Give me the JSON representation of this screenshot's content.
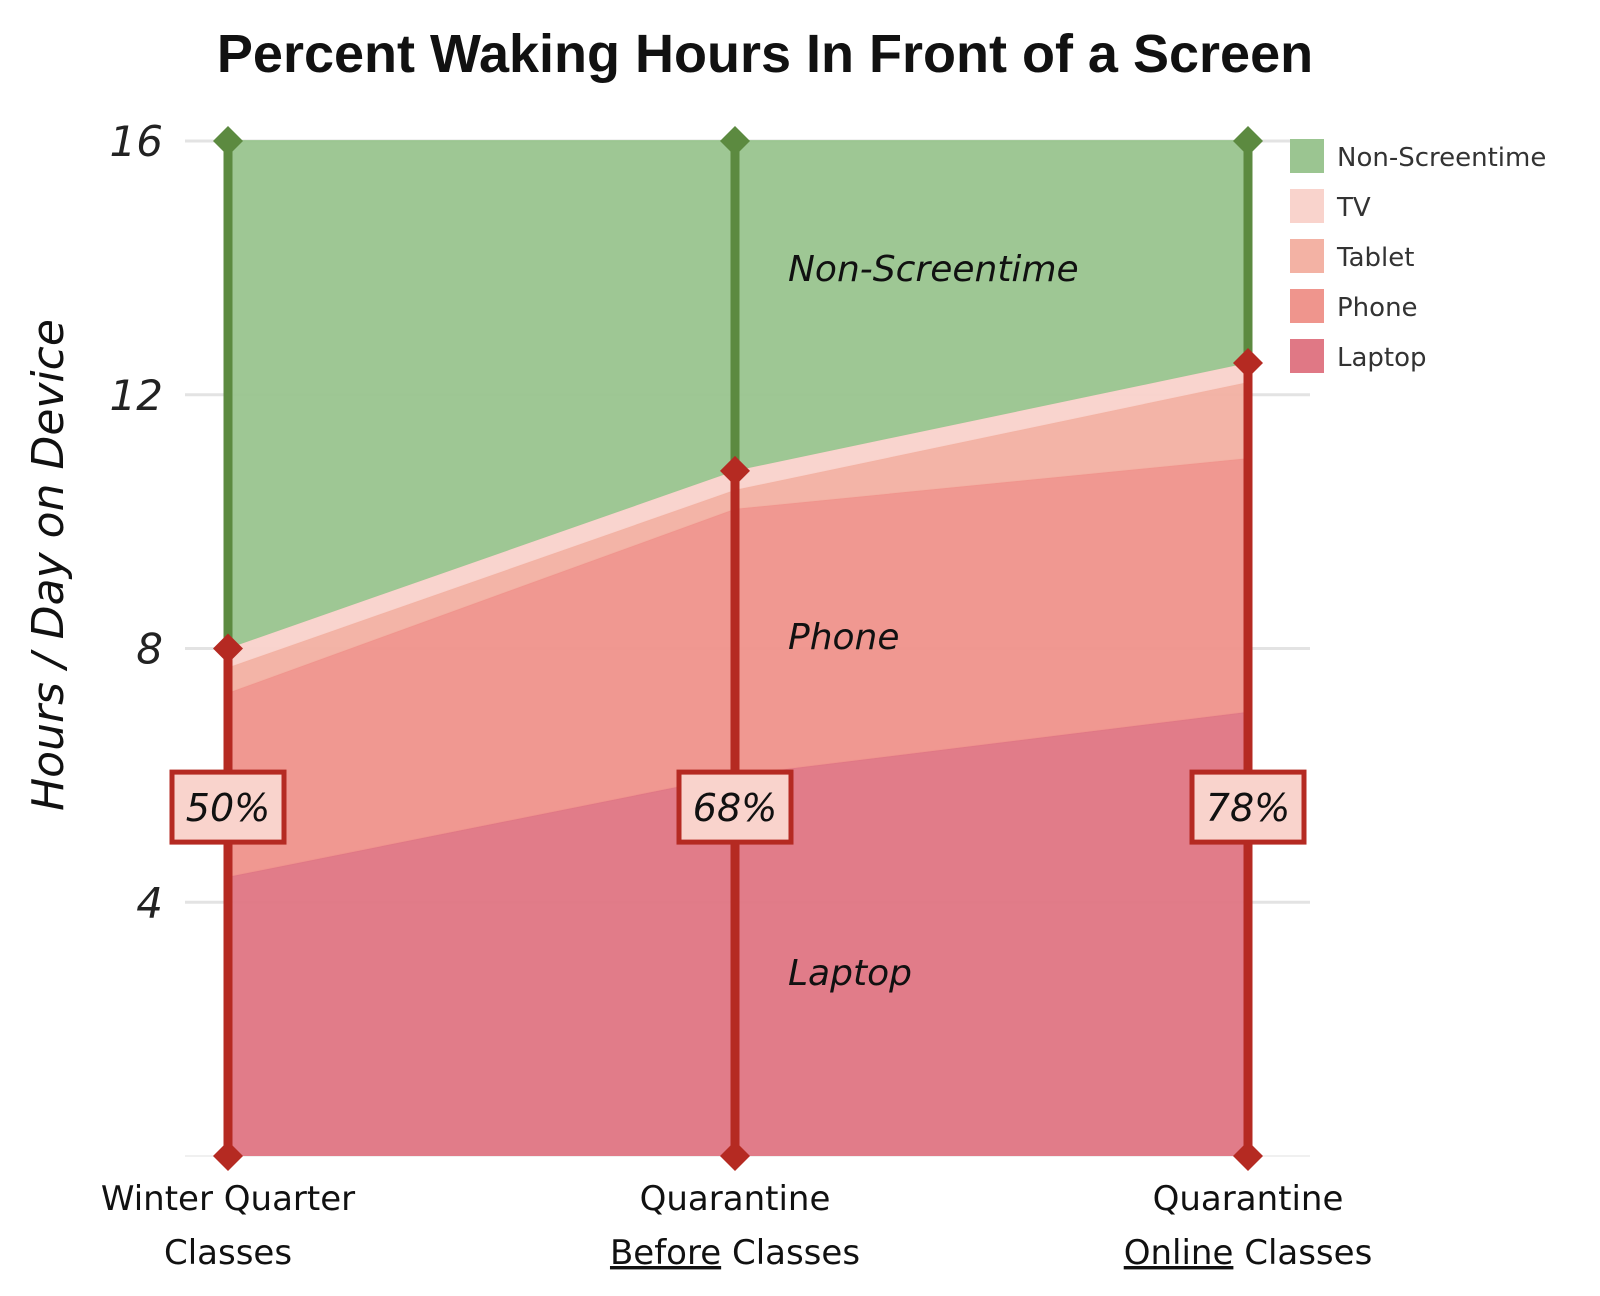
{
  "chart_data": {
    "type": "area",
    "title": "Percent Waking Hours In Front of a Screen",
    "ylabel": "Hours / Day on Device",
    "xlabel": "",
    "ylim": [
      0,
      16
    ],
    "yticks": [
      4,
      8,
      12,
      16
    ],
    "grid": true,
    "stacked": true,
    "legend_position": "top-right",
    "categories": [
      {
        "lines": [
          [
            {
              "text": "Winter Quarter",
              "underline": false
            }
          ],
          [
            {
              "text": "Classes",
              "underline": false
            }
          ]
        ]
      },
      {
        "lines": [
          [
            {
              "text": "Quarantine",
              "underline": false
            }
          ],
          [
            {
              "text": "Before",
              "underline": true
            },
            {
              "text": " Classes",
              "underline": false
            }
          ]
        ]
      },
      {
        "lines": [
          [
            {
              "text": "Quarantine",
              "underline": false
            }
          ],
          [
            {
              "text": "Online",
              "underline": true
            },
            {
              "text": " Classes",
              "underline": false
            }
          ]
        ]
      }
    ],
    "series": [
      {
        "name": "Laptop",
        "color": "#e07885",
        "values": [
          4.4,
          6.0,
          7.0
        ]
      },
      {
        "name": "Phone",
        "color": "#ef958d",
        "values": [
          2.9,
          4.2,
          4.0
        ]
      },
      {
        "name": "Tablet",
        "color": "#f3b2a4",
        "values": [
          0.4,
          0.3,
          1.2
        ]
      },
      {
        "name": "TV",
        "color": "#f9d3cc",
        "values": [
          0.3,
          0.3,
          0.3
        ]
      },
      {
        "name": "Non-Screentime",
        "color": "#9bc591",
        "values": [
          8.0,
          5.2,
          3.5
        ]
      }
    ],
    "legend_order": [
      "Non-Screentime",
      "TV",
      "Tablet",
      "Phone",
      "Laptop"
    ],
    "screen_totals": [
      8.0,
      10.8,
      12.5
    ],
    "waking_total": 16,
    "percent_labels": [
      "50%",
      "68%",
      "78%"
    ],
    "percent_label_value": 5.5,
    "area_labels": [
      {
        "text": "Non-Screentime",
        "y": 14.0
      },
      {
        "text": "Phone",
        "y": 8.2
      },
      {
        "text": "Laptop",
        "y": 2.9
      }
    ],
    "colors": {
      "screen_line": "#b52a22",
      "nonscreen_line": "#5c8a40",
      "grid": "#e3e3e3",
      "percent_box_fill": "#f9d3cc",
      "percent_box_stroke": "#b52a22"
    }
  }
}
